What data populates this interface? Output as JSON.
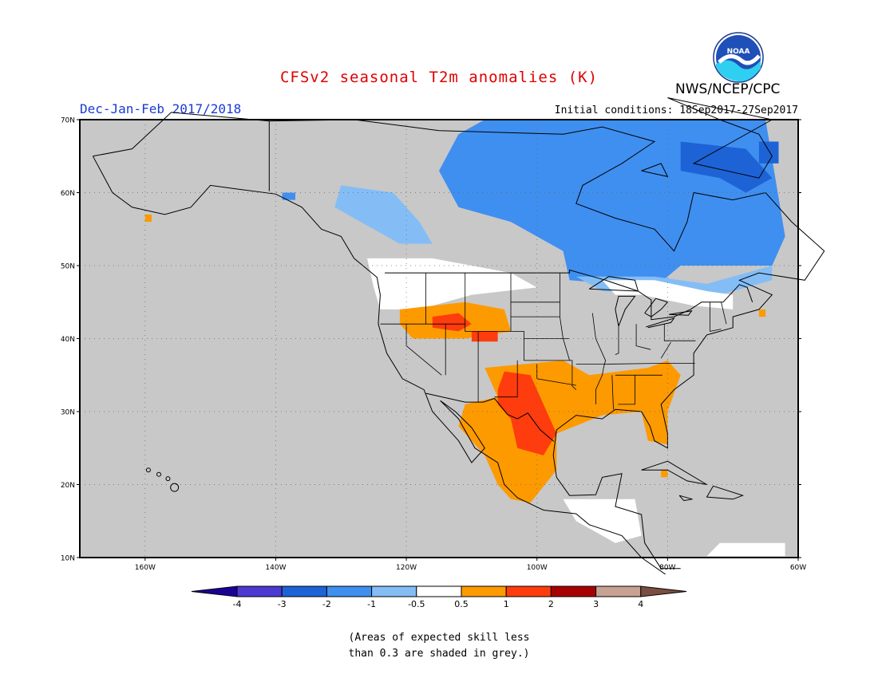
{
  "title": "CFSv2 seasonal T2m anomalies (K)",
  "subtitle": "Dec-Jan-Feb 2017/2018",
  "initial_conditions": "Initial conditions: 18Sep2017-27Sep2017",
  "organization": "NWS/NCEP/CPC",
  "logo_text": "NOAA",
  "map": {
    "lat_labels": [
      "70N",
      "60N",
      "50N",
      "40N",
      "30N",
      "20N",
      "10N"
    ],
    "lon_labels": [
      "160W",
      "140W",
      "120W",
      "100W",
      "80W",
      "60W"
    ]
  },
  "legend": {
    "labels": [
      "-4",
      "-3",
      "-2",
      "-1",
      "-0.5",
      "0.5",
      "1",
      "2",
      "3",
      "4"
    ],
    "colors": [
      "#1c0096",
      "#4c3ad2",
      "#1d63d6",
      "#3f8ff0",
      "#84bdf6",
      "#ffffff",
      "#fd9a00",
      "#ff3c0d",
      "#a70000",
      "#c7a193",
      "#7a4e40"
    ]
  },
  "skill_note": "(Areas of expected skill less\nthan 0.3 are shaded in grey.)",
  "colors": {
    "title": "#e00000",
    "subtitle": "#1a3ad6",
    "low_skill_grey": "#c8c8c8"
  }
}
